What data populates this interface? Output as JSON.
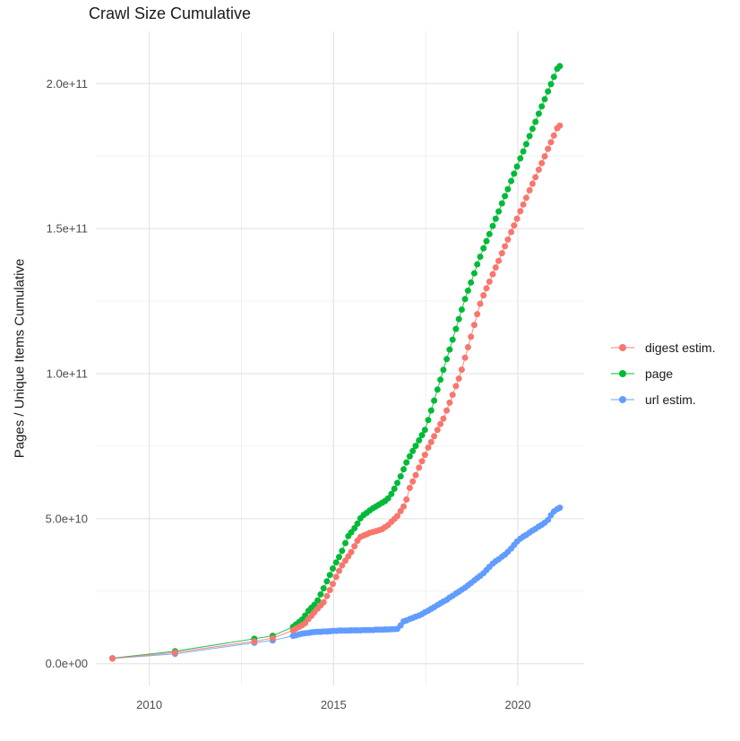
{
  "chart_data": {
    "type": "line",
    "markers": true,
    "title": "Crawl Size Cumulative",
    "xlabel": "",
    "ylabel": "Pages / Unique Items Cumulative",
    "legend_position": "right",
    "grid": true,
    "background": "#ffffff",
    "grid_major_color": "#e5e5e5",
    "grid_minor_color": "#f0f0f0",
    "xlim": [
      2008.55,
      2021.8
    ],
    "ylim_e9": [
      -7.5,
      218
    ],
    "value_unit": "items (values stored in billions, 1e9)",
    "x_ticks": [
      2010,
      2015,
      2020
    ],
    "x_tick_labels": [
      "2010",
      "2015",
      "2020"
    ],
    "x_minor_ticks": [
      2012.5,
      2017.5
    ],
    "y_ticks_e9": [
      0,
      50,
      100,
      150,
      200
    ],
    "y_tick_labels": [
      "0.0e+00",
      "5.0e+10",
      "1.0e+11",
      "1.5e+11",
      "2.0e+11"
    ],
    "y_minor_ticks_e9": [
      25,
      75,
      125,
      175
    ],
    "draw_order": [
      "page",
      "url estim.",
      "digest estim."
    ],
    "series": [
      {
        "name": "digest estim.",
        "color": "#F8766D",
        "points": [
          [
            2009,
            1.8
          ],
          [
            2010.7,
            3.9
          ],
          [
            2012.85,
            7.7
          ],
          [
            2013.35,
            8.8
          ],
          [
            2013.9,
            11.5
          ],
          [
            2013.98,
            12.1
          ],
          [
            2014.07,
            12.7
          ],
          [
            2014.15,
            13.3
          ],
          [
            2014.23,
            14.0
          ],
          [
            2014.32,
            15.4
          ],
          [
            2014.4,
            16.5
          ],
          [
            2014.48,
            17.7
          ],
          [
            2014.57,
            19.0
          ],
          [
            2014.65,
            20.1
          ],
          [
            2014.73,
            21.2
          ],
          [
            2014.82,
            23.3
          ],
          [
            2014.9,
            25.4
          ],
          [
            2014.98,
            27.5
          ],
          [
            2015.07,
            29.9
          ],
          [
            2015.15,
            32.0
          ],
          [
            2015.23,
            33.9
          ],
          [
            2015.32,
            35.5
          ],
          [
            2015.4,
            37.0
          ],
          [
            2015.48,
            38.5
          ],
          [
            2015.57,
            40.5
          ],
          [
            2015.65,
            42.4
          ],
          [
            2015.73,
            43.7
          ],
          [
            2015.82,
            44.2
          ],
          [
            2015.9,
            44.6
          ],
          [
            2015.98,
            45.1
          ],
          [
            2016.07,
            45.4
          ],
          [
            2016.15,
            45.7
          ],
          [
            2016.23,
            46.0
          ],
          [
            2016.32,
            46.4
          ],
          [
            2016.4,
            47.1
          ],
          [
            2016.48,
            47.8
          ],
          [
            2016.57,
            48.9
          ],
          [
            2016.65,
            49.9
          ],
          [
            2016.73,
            50.9
          ],
          [
            2016.82,
            52.6
          ],
          [
            2016.9,
            54.2
          ],
          [
            2016.98,
            56.6
          ],
          [
            2017.07,
            60.6
          ],
          [
            2017.15,
            62.8
          ],
          [
            2017.23,
            65.0
          ],
          [
            2017.32,
            67.6
          ],
          [
            2017.4,
            69.8
          ],
          [
            2017.48,
            72.0
          ],
          [
            2017.57,
            74.5
          ],
          [
            2017.65,
            76.4
          ],
          [
            2017.73,
            78.4
          ],
          [
            2017.82,
            80.6
          ],
          [
            2017.9,
            82.6
          ],
          [
            2017.98,
            84.5
          ],
          [
            2018.07,
            87.3
          ],
          [
            2018.15,
            90.0
          ],
          [
            2018.23,
            92.7
          ],
          [
            2018.32,
            95.7
          ],
          [
            2018.4,
            98.3
          ],
          [
            2018.48,
            101.4
          ],
          [
            2018.57,
            105.5
          ],
          [
            2018.65,
            109.1
          ],
          [
            2018.73,
            112.7
          ],
          [
            2018.82,
            116.8
          ],
          [
            2018.9,
            120.5
          ],
          [
            2018.98,
            124.1
          ],
          [
            2019.07,
            127.0
          ],
          [
            2019.15,
            129.4
          ],
          [
            2019.23,
            131.7
          ],
          [
            2019.32,
            134.3
          ],
          [
            2019.4,
            136.6
          ],
          [
            2019.48,
            138.9
          ],
          [
            2019.57,
            141.5
          ],
          [
            2019.65,
            143.9
          ],
          [
            2019.73,
            146.2
          ],
          [
            2019.82,
            148.8
          ],
          [
            2019.9,
            151.1
          ],
          [
            2019.98,
            153.4
          ],
          [
            2020.07,
            156.0
          ],
          [
            2020.15,
            158.3
          ],
          [
            2020.23,
            160.6
          ],
          [
            2020.32,
            163.2
          ],
          [
            2020.4,
            165.5
          ],
          [
            2020.48,
            167.7
          ],
          [
            2020.57,
            170.3
          ],
          [
            2020.65,
            172.6
          ],
          [
            2020.73,
            174.9
          ],
          [
            2020.82,
            177.5
          ],
          [
            2020.9,
            179.8
          ],
          [
            2020.98,
            182.1
          ],
          [
            2021.07,
            184.6
          ],
          [
            2021.14,
            185.5
          ]
        ]
      },
      {
        "name": "page",
        "color": "#00BA38",
        "points": [
          [
            2009,
            1.9
          ],
          [
            2010.7,
            4.3
          ],
          [
            2012.85,
            8.6
          ],
          [
            2013.35,
            9.6
          ],
          [
            2013.9,
            12.7
          ],
          [
            2013.98,
            13.5
          ],
          [
            2014.07,
            14.4
          ],
          [
            2014.15,
            15.2
          ],
          [
            2014.23,
            16.6
          ],
          [
            2014.32,
            18.2
          ],
          [
            2014.4,
            19.3
          ],
          [
            2014.48,
            20.3
          ],
          [
            2014.57,
            21.8
          ],
          [
            2014.65,
            23.9
          ],
          [
            2014.73,
            26.0
          ],
          [
            2014.82,
            28.4
          ],
          [
            2014.9,
            30.6
          ],
          [
            2014.98,
            32.8
          ],
          [
            2015.07,
            34.9
          ],
          [
            2015.15,
            36.8
          ],
          [
            2015.23,
            38.9
          ],
          [
            2015.32,
            41.6
          ],
          [
            2015.4,
            44.0
          ],
          [
            2015.48,
            45.3
          ],
          [
            2015.57,
            46.7
          ],
          [
            2015.65,
            48.3
          ],
          [
            2015.73,
            50.1
          ],
          [
            2015.82,
            51.3
          ],
          [
            2015.9,
            52.0
          ],
          [
            2015.98,
            52.8
          ],
          [
            2016.07,
            53.6
          ],
          [
            2016.15,
            54.2
          ],
          [
            2016.23,
            54.8
          ],
          [
            2016.32,
            55.5
          ],
          [
            2016.4,
            56.1
          ],
          [
            2016.48,
            57.0
          ],
          [
            2016.57,
            58.5
          ],
          [
            2016.65,
            60.3
          ],
          [
            2016.73,
            62.3
          ],
          [
            2016.82,
            64.6
          ],
          [
            2016.9,
            67.0
          ],
          [
            2016.98,
            69.4
          ],
          [
            2017.07,
            71.5
          ],
          [
            2017.15,
            73.3
          ],
          [
            2017.23,
            75.1
          ],
          [
            2017.32,
            77.0
          ],
          [
            2017.4,
            78.8
          ],
          [
            2017.48,
            80.6
          ],
          [
            2017.57,
            84.0
          ],
          [
            2017.65,
            87.3
          ],
          [
            2017.73,
            90.7
          ],
          [
            2017.82,
            94.5
          ],
          [
            2017.9,
            97.9
          ],
          [
            2017.98,
            101.3
          ],
          [
            2018.07,
            105.0
          ],
          [
            2018.15,
            108.3
          ],
          [
            2018.23,
            111.7
          ],
          [
            2018.32,
            115.4
          ],
          [
            2018.4,
            118.8
          ],
          [
            2018.48,
            122.1
          ],
          [
            2018.57,
            125.7
          ],
          [
            2018.65,
            128.6
          ],
          [
            2018.73,
            131.4
          ],
          [
            2018.82,
            134.6
          ],
          [
            2018.9,
            137.7
          ],
          [
            2018.98,
            140.3
          ],
          [
            2019.07,
            143.2
          ],
          [
            2019.15,
            145.7
          ],
          [
            2019.23,
            148.1
          ],
          [
            2019.32,
            150.9
          ],
          [
            2019.4,
            153.4
          ],
          [
            2019.48,
            155.9
          ],
          [
            2019.57,
            158.7
          ],
          [
            2019.65,
            161.2
          ],
          [
            2019.73,
            163.6
          ],
          [
            2019.82,
            166.4
          ],
          [
            2019.9,
            168.9
          ],
          [
            2019.98,
            171.4
          ],
          [
            2020.07,
            174.2
          ],
          [
            2020.15,
            176.6
          ],
          [
            2020.23,
            179.1
          ],
          [
            2020.32,
            181.9
          ],
          [
            2020.4,
            184.4
          ],
          [
            2020.48,
            186.8
          ],
          [
            2020.57,
            189.6
          ],
          [
            2020.65,
            192.1
          ],
          [
            2020.73,
            194.6
          ],
          [
            2020.82,
            197.3
          ],
          [
            2020.9,
            199.8
          ],
          [
            2020.98,
            202.3
          ],
          [
            2021.07,
            205.1
          ],
          [
            2021.14,
            206.0
          ]
        ]
      },
      {
        "name": "url estim.",
        "color": "#619CFF",
        "points": [
          [
            2009,
            1.8
          ],
          [
            2010.7,
            3.4
          ],
          [
            2012.85,
            7.2
          ],
          [
            2013.35,
            8.0
          ],
          [
            2013.9,
            9.6
          ],
          [
            2013.98,
            9.8
          ],
          [
            2014.07,
            10.1
          ],
          [
            2014.15,
            10.4
          ],
          [
            2014.23,
            10.5
          ],
          [
            2014.32,
            10.6
          ],
          [
            2014.4,
            10.8
          ],
          [
            2014.48,
            10.9
          ],
          [
            2014.57,
            11.0
          ],
          [
            2014.65,
            11.0
          ],
          [
            2014.73,
            11.1
          ],
          [
            2014.82,
            11.1
          ],
          [
            2014.9,
            11.2
          ],
          [
            2014.98,
            11.3
          ],
          [
            2015.07,
            11.3
          ],
          [
            2015.15,
            11.4
          ],
          [
            2015.23,
            11.4
          ],
          [
            2015.32,
            11.4
          ],
          [
            2015.4,
            11.4
          ],
          [
            2015.48,
            11.5
          ],
          [
            2015.57,
            11.5
          ],
          [
            2015.65,
            11.5
          ],
          [
            2015.73,
            11.5
          ],
          [
            2015.82,
            11.6
          ],
          [
            2015.9,
            11.6
          ],
          [
            2015.98,
            11.6
          ],
          [
            2016.07,
            11.6
          ],
          [
            2016.15,
            11.7
          ],
          [
            2016.23,
            11.7
          ],
          [
            2016.32,
            11.7
          ],
          [
            2016.4,
            11.8
          ],
          [
            2016.48,
            11.8
          ],
          [
            2016.57,
            11.9
          ],
          [
            2016.65,
            11.9
          ],
          [
            2016.73,
            12.0
          ],
          [
            2016.82,
            13.2
          ],
          [
            2016.9,
            14.6
          ],
          [
            2016.98,
            14.9
          ],
          [
            2017.07,
            15.4
          ],
          [
            2017.15,
            15.8
          ],
          [
            2017.23,
            16.2
          ],
          [
            2017.32,
            16.6
          ],
          [
            2017.4,
            17.1
          ],
          [
            2017.48,
            17.7
          ],
          [
            2017.57,
            18.3
          ],
          [
            2017.65,
            18.9
          ],
          [
            2017.73,
            19.5
          ],
          [
            2017.82,
            20.2
          ],
          [
            2017.9,
            20.8
          ],
          [
            2017.98,
            21.4
          ],
          [
            2018.07,
            22.0
          ],
          [
            2018.15,
            22.8
          ],
          [
            2018.23,
            23.4
          ],
          [
            2018.32,
            24.2
          ],
          [
            2018.4,
            24.8
          ],
          [
            2018.48,
            25.5
          ],
          [
            2018.57,
            26.2
          ],
          [
            2018.65,
            27.0
          ],
          [
            2018.73,
            27.8
          ],
          [
            2018.82,
            28.7
          ],
          [
            2018.9,
            29.5
          ],
          [
            2018.98,
            30.3
          ],
          [
            2019.07,
            31.2
          ],
          [
            2019.15,
            32.3
          ],
          [
            2019.23,
            33.4
          ],
          [
            2019.32,
            34.5
          ],
          [
            2019.4,
            35.3
          ],
          [
            2019.48,
            36.0
          ],
          [
            2019.57,
            36.9
          ],
          [
            2019.65,
            37.6
          ],
          [
            2019.73,
            38.6
          ],
          [
            2019.82,
            39.7
          ],
          [
            2019.9,
            40.9
          ],
          [
            2019.98,
            42.1
          ],
          [
            2020.07,
            43.1
          ],
          [
            2020.15,
            43.8
          ],
          [
            2020.23,
            44.4
          ],
          [
            2020.32,
            45.2
          ],
          [
            2020.4,
            45.9
          ],
          [
            2020.48,
            46.5
          ],
          [
            2020.57,
            47.3
          ],
          [
            2020.65,
            47.9
          ],
          [
            2020.73,
            48.6
          ],
          [
            2020.82,
            49.6
          ],
          [
            2020.9,
            51.2
          ],
          [
            2020.98,
            52.5
          ],
          [
            2021.07,
            53.3
          ],
          [
            2021.14,
            53.8
          ]
        ]
      }
    ]
  }
}
